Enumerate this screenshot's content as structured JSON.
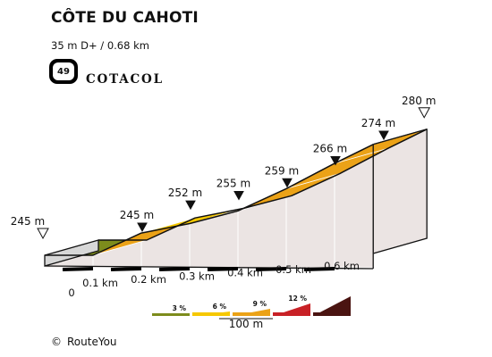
{
  "header": {
    "title": "CÔTE DU CAHOTI",
    "subtitle": "35 m D+ / 0.68 km",
    "badge_number": "49",
    "brand": "COTACOL"
  },
  "footer": {
    "copyright_symbol": "©",
    "credit": "RouteYou"
  },
  "legend": {
    "grades": [
      {
        "label": "3 %",
        "color": "#7d8c1c"
      },
      {
        "label": "6 %",
        "color": "#f6c800"
      },
      {
        "label": "9 %",
        "color": "#eba217"
      },
      {
        "label": "12 %",
        "color": "#c82126"
      },
      {
        "label": "",
        "color": "#4a1411"
      }
    ],
    "scale_label": "100 m"
  },
  "chart_data": {
    "type": "area",
    "title": "CÔTE DU CAHOTI",
    "xlabel": "",
    "ylabel": "",
    "x_unit": "km",
    "y_unit": "m",
    "x_ticks": [
      {
        "value": 0,
        "label": "0"
      },
      {
        "value": 0.1,
        "label": "0.1 km"
      },
      {
        "value": 0.2,
        "label": "0.2 km"
      },
      {
        "value": 0.3,
        "label": "0.3 km"
      },
      {
        "value": 0.4,
        "label": "0.4 km"
      },
      {
        "value": 0.5,
        "label": "0.5 km"
      },
      {
        "value": 0.6,
        "label": "0.6 km"
      }
    ],
    "profile": [
      {
        "x": 0,
        "y": 245
      },
      {
        "x": 0.1,
        "y": 245
      },
      {
        "x": 0.2,
        "y": 252
      },
      {
        "x": 0.3,
        "y": 255
      },
      {
        "x": 0.4,
        "y": 259
      },
      {
        "x": 0.5,
        "y": 266
      },
      {
        "x": 0.6,
        "y": 274
      },
      {
        "x": 0.68,
        "y": 280
      }
    ],
    "segment_colors": [
      "#7d8c1c",
      "#eba217",
      "#f6c800",
      "#f6c800",
      "#eba217",
      "#eba217",
      "#eba217"
    ],
    "point_labels": [
      {
        "x": 0,
        "label": "245 m",
        "marker": "open"
      },
      {
        "x": 0.1,
        "label": "245 m",
        "marker": "filled"
      },
      {
        "x": 0.2,
        "label": "252 m",
        "marker": "filled"
      },
      {
        "x": 0.3,
        "label": "255 m",
        "marker": "filled"
      },
      {
        "x": 0.4,
        "label": "259 m",
        "marker": "filled"
      },
      {
        "x": 0.5,
        "label": "266 m",
        "marker": "filled"
      },
      {
        "x": 0.6,
        "label": "274 m",
        "marker": "filled"
      },
      {
        "x": 0.68,
        "label": "280 m",
        "marker": "open"
      }
    ],
    "colors": {
      "side": "#ebe4e3",
      "front": "#d7d7d7",
      "outline": "#111111",
      "km_tick": "#000000"
    }
  }
}
